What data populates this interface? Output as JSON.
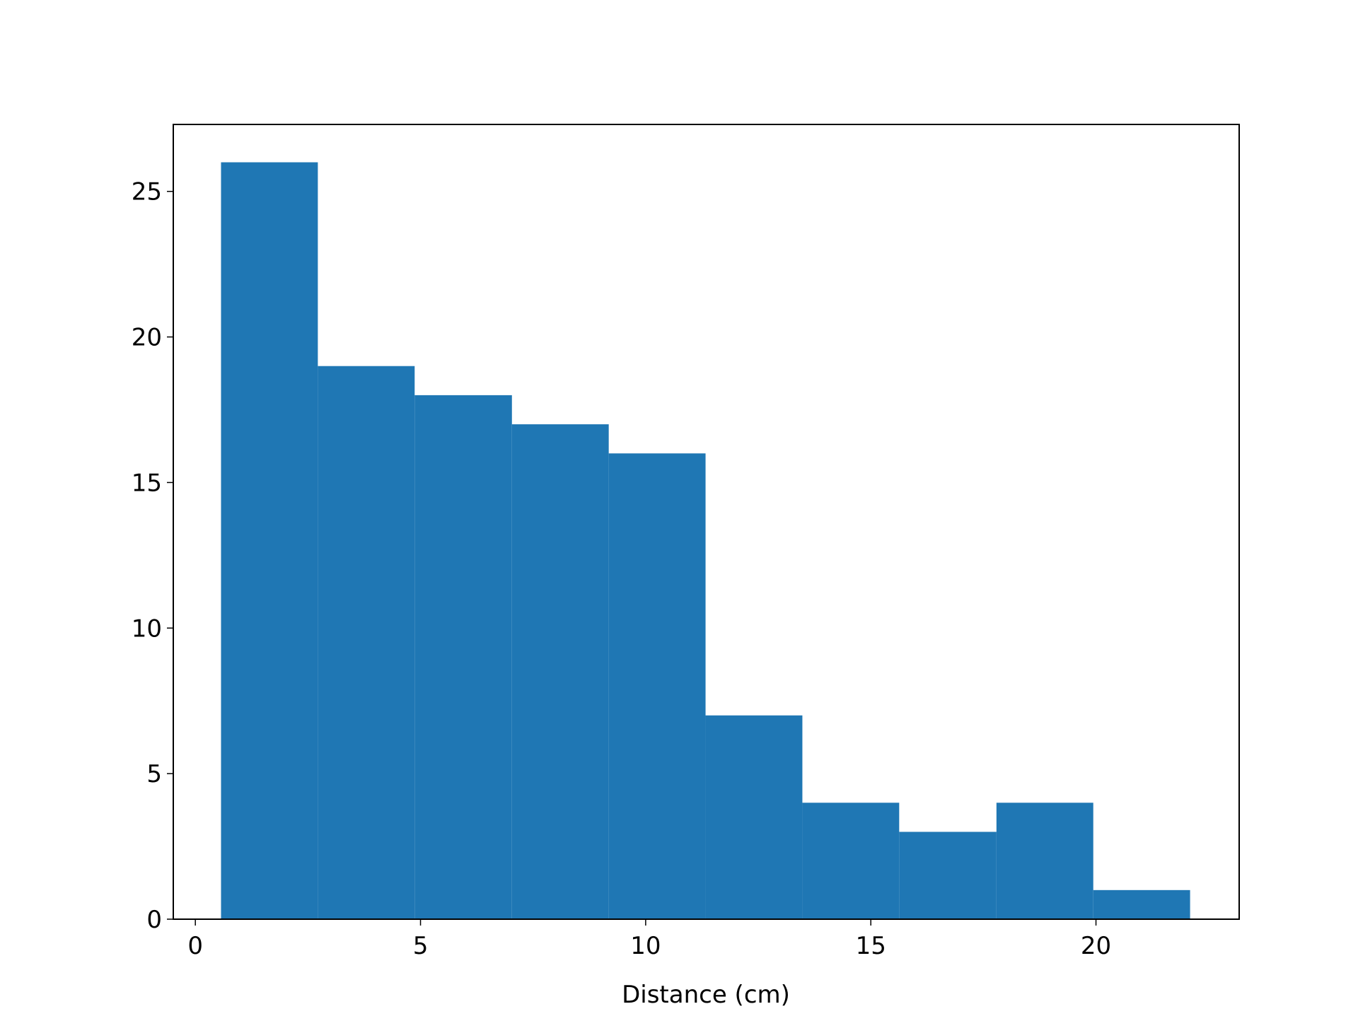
{
  "chart_data": {
    "type": "histogram",
    "xlabel": "Distance (cm)",
    "bins": [
      0.57,
      2.72,
      4.87,
      7.03,
      9.18,
      11.33,
      13.48,
      15.63,
      17.79,
      19.94,
      22.09
    ],
    "counts": [
      26,
      19,
      18,
      17,
      16,
      7,
      4,
      3,
      4,
      1
    ],
    "color": "#1f77b4",
    "xlim": [
      -0.49,
      23.18
    ],
    "xticks": [
      0,
      5,
      10,
      15,
      20
    ],
    "ylim": [
      0,
      27.3
    ],
    "yticks": [
      0,
      5,
      10,
      15,
      20,
      25
    ],
    "grid": false
  }
}
